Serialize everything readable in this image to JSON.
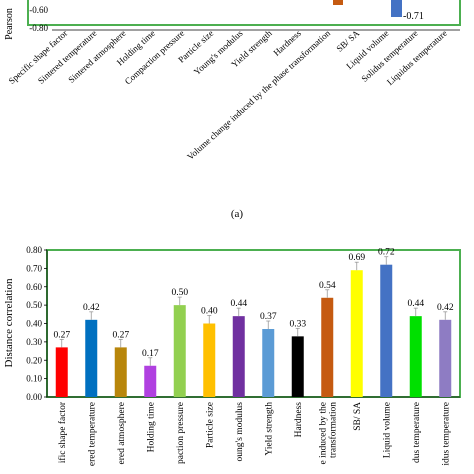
{
  "chart_data": [
    {
      "type": "bar",
      "panel_label": "",
      "ylabel": "Pearson",
      "yticks": [
        "-0.60",
        "-0.80"
      ],
      "ylim": [
        -0.8,
        0
      ],
      "categories": [
        "Specific shape factor",
        "Sintered temperature",
        "Sintered atmosphere",
        "Holding time",
        "Compaction pressure",
        "Particle size",
        "Young's modulus",
        "Yield strength",
        "Hardness",
        "Volume change induced by the phase transformation",
        "SB/ SA",
        "Liquid volume",
        "Solidus temperature",
        "Liquidus temperature"
      ],
      "visible_values": [
        {
          "category": "Volume change induced by the phase transformation",
          "value": -0.54,
          "color": "#c55a11"
        },
        {
          "category": "Liquid volume",
          "value": -0.71,
          "color": "#4472c4",
          "label": "-0.71"
        }
      ],
      "grid": false,
      "frame_color": "#4caf50"
    },
    {
      "type": "bar",
      "panel_label": "(a)",
      "ylabel": "Distance correlation",
      "ylim": [
        0,
        0.8
      ],
      "yticks": [
        "0.00",
        "0.10",
        "0.20",
        "0.30",
        "0.40",
        "0.50",
        "0.60",
        "0.70",
        "0.80"
      ],
      "categories": [
        "Specific shape factor",
        "Sintered temperature",
        "Sintered atmosphere",
        "Holding time",
        "Compaction pressure",
        "Particle size",
        "Young's modulus",
        "Yield strength",
        "Hardness",
        "Volume change induced by the phase transformation",
        "SB/ SA",
        "Liquid volume",
        "Solidus temperature",
        "Liquidus temperature"
      ],
      "category_labels_visible": [
        "ific shape factor",
        "ered temperature",
        "ered atmosphere",
        "Holding time",
        "paction pressure",
        "Particle size",
        "oung's modulus",
        "Yield strength",
        "Hardness",
        "e induced by the\ntransformation",
        "SB/ SA",
        "Liquid volume",
        "dus temperature",
        "idus temperature"
      ],
      "values": [
        0.27,
        0.42,
        0.27,
        0.17,
        0.5,
        0.4,
        0.44,
        0.37,
        0.33,
        0.54,
        0.69,
        0.72,
        0.44,
        0.42
      ],
      "value_labels": [
        "0.27",
        "0.42",
        "0.27",
        "0.17",
        "0.50",
        "0.40",
        "0.44",
        "0.37",
        "0.33",
        "0.54",
        "0.69",
        "0.72",
        "0.44",
        "0.42"
      ],
      "colors": [
        "#ff0000",
        "#0070c0",
        "#b8860b",
        "#b040e0",
        "#92d050",
        "#ffc000",
        "#7030a0",
        "#5b9bd5",
        "#000000",
        "#c55a11",
        "#ffff00",
        "#4472c4",
        "#00e000",
        "#8e7cc3"
      ],
      "grid": false,
      "frame_color": "#4caf50"
    }
  ]
}
